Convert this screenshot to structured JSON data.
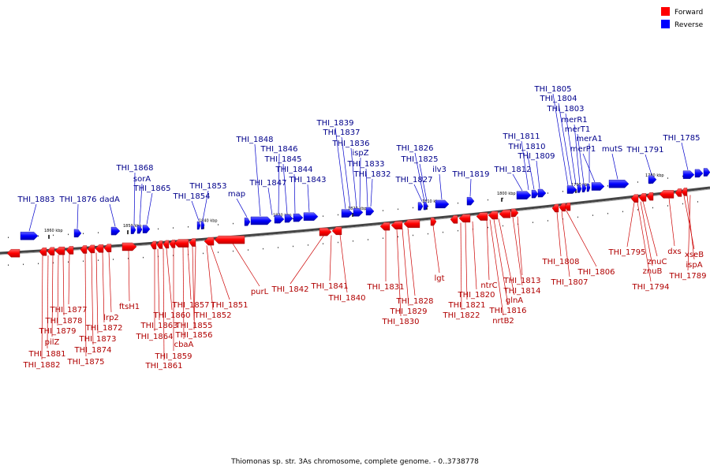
{
  "caption": "Thiomonas sp. str. 3As chromosome, complete genome. - 0..3738778",
  "legend": [
    {
      "label": "Forward",
      "color": "#ff0000"
    },
    {
      "label": "Reverse",
      "color": "#0000ff"
    }
  ],
  "scale_ticks": [
    "1860 kbp",
    "1850 kbp",
    "1840 kbp",
    "1830 kbp",
    "1820 kbp",
    "1810 kbp",
    "1800 kbp",
    "1790 kbp",
    "1780 kbp"
  ],
  "reverse_gene_labels": [
    "THI_1883",
    "THI_1876",
    "dadA",
    "THI_1868",
    "sorA",
    "THI_1865",
    "THI_1854",
    "THI_1853",
    "map",
    "THI_1848",
    "THI_1847",
    "THI_1846",
    "THI_1845",
    "THI_1844",
    "THI_1843",
    "THI_1839",
    "THI_1837",
    "THI_1836",
    "ispZ",
    "THI_1833",
    "THI_1832",
    "THI_1827",
    "THI_1826",
    "THI_1825",
    "ilv3",
    "THI_1819",
    "THI_1812",
    "THI_1811",
    "THI_1810",
    "THI_1809",
    "THI_1805",
    "THI_1804",
    "THI_1803",
    "merR1",
    "merT1",
    "merA1",
    "merP1",
    "mutS",
    "THI_1791",
    "THI_1785"
  ],
  "forward_gene_labels": [
    "THI_1877",
    "THI_1878",
    "THI_1879",
    "pilZ",
    "THI_1881",
    "THI_1882",
    "lrp2",
    "THI_1872",
    "THI_1873",
    "THI_1874",
    "THI_1875",
    "ftsH1",
    "THI_1860",
    "THI_1863",
    "THI_1864",
    "THI_1857",
    "THI_1855",
    "THI_1856",
    "cbaA",
    "THI_1859",
    "THI_1861",
    "THI_1851",
    "THI_1852",
    "purL",
    "THI_1842",
    "THI_1841",
    "THI_1840",
    "THI_1831",
    "THI_1828",
    "THI_1829",
    "THI_1830",
    "lgt",
    "ntrC",
    "THI_1820",
    "THI_1821",
    "THI_1822",
    "glnA",
    "THI_1816",
    "nrtB2",
    "THI_1813",
    "THI_1814",
    "THI_1808",
    "THI_1806",
    "THI_1807",
    "THI_1795",
    "znuC",
    "znuB",
    "THI_1794",
    "dxs",
    "xseB",
    "ispA",
    "THI_1789"
  ]
}
